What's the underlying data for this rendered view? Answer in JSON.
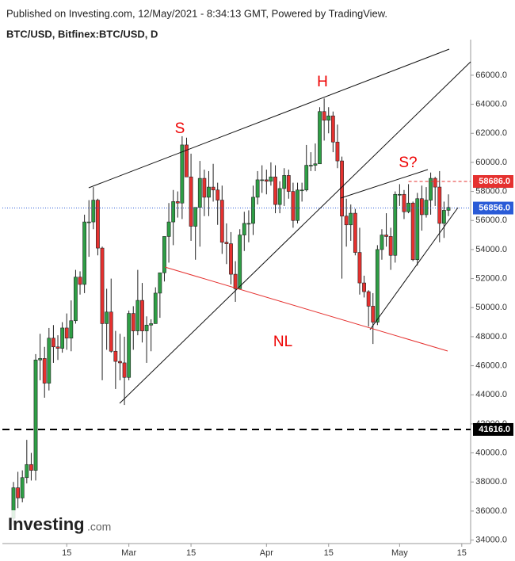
{
  "header": {
    "published": "Published on Investing.com, 12/May/2021 - 8:34:13 GMT, Powered by TradingView.",
    "symbol": "BTC/USD, Bitfinex:BTC/USD, D"
  },
  "logo": {
    "brand": "Investing",
    "suffix": ".com"
  },
  "chart_data": {
    "type": "candlestick",
    "annotations": [
      {
        "text": "S"
      },
      {
        "text": "H"
      },
      {
        "text": "S?"
      },
      {
        "text": "NL"
      }
    ],
    "up_color": "#2e9e45",
    "down_color": "#e5312f",
    "x": [
      2,
      3,
      4,
      5,
      6,
      7,
      8,
      9,
      10,
      11,
      12,
      13,
      14,
      15,
      16,
      17,
      18,
      19,
      20,
      21,
      22,
      23,
      24,
      25,
      26,
      27,
      28,
      29,
      30,
      31,
      32,
      33,
      34,
      35,
      36,
      37,
      38,
      39,
      40,
      41,
      42,
      43,
      44,
      45,
      46,
      47,
      48,
      49,
      50,
      51,
      52,
      53,
      54,
      55,
      56,
      57,
      58,
      59,
      60,
      61,
      62,
      63,
      64,
      65,
      66,
      67,
      68,
      69,
      70,
      71,
      72,
      73,
      74,
      75,
      76,
      77,
      78,
      79,
      80,
      81,
      82,
      83,
      84,
      85,
      86,
      87,
      88,
      89,
      90,
      91,
      92,
      93,
      94,
      95,
      96,
      97,
      98,
      99,
      100
    ],
    "open": [
      35500,
      37600,
      36900,
      38300,
      39200,
      38800,
      46400,
      46500,
      44800,
      47900,
      47300,
      47200,
      48600,
      47900,
      49100,
      52100,
      51600,
      55900,
      55900,
      57400,
      54100,
      48900,
      49700,
      47000,
      46300,
      46200,
      45200,
      49600,
      48400,
      50500,
      48400,
      48800,
      48900,
      51000,
      52400,
      54900,
      55900,
      57300,
      57200,
      61200,
      59000,
      55600,
      56900,
      58900,
      57600,
      58300,
      58100,
      57400,
      54500,
      54400,
      52300,
      51300,
      55000,
      55800,
      55800,
      57600,
      58800,
      58800,
      58700,
      59000,
      57100,
      58200,
      59100,
      58000,
      56000,
      58100,
      58100,
      59800,
      59800,
      59900,
      63500,
      62900,
      63200,
      61400,
      60100,
      56300,
      55700,
      56500,
      53800,
      51700,
      51100,
      50100,
      49000,
      54000,
      55000,
      54900,
      53600,
      57800,
      57800,
      56600,
      57200,
      53300,
      57500,
      56400,
      57400,
      58900,
      58300,
      55800,
      56700
    ],
    "high": [
      38000,
      38700,
      38800,
      40900,
      40000,
      46800,
      48200,
      47300,
      48600,
      48800,
      48100,
      49000,
      49600,
      50500,
      52600,
      52500,
      56400,
      57400,
      58300,
      57500,
      54200,
      51300,
      52000,
      48400,
      48200,
      48000,
      49800,
      50100,
      52600,
      51700,
      49400,
      49200,
      51400,
      52400,
      54900,
      57200,
      58100,
      58000,
      61800,
      61700,
      60600,
      56900,
      60100,
      59500,
      59400,
      59900,
      58600,
      58400,
      55800,
      55200,
      53200,
      55400,
      56600,
      56700,
      58400,
      59400,
      59800,
      59500,
      60000,
      59800,
      58700,
      59600,
      59500,
      58600,
      58600,
      58600,
      61200,
      60700,
      61300,
      63800,
      64400,
      63800,
      63500,
      62600,
      60400,
      57500,
      57100,
      56800,
      55500,
      52200,
      51200,
      51000,
      54300,
      55400,
      56500,
      55500,
      58000,
      58500,
      58100,
      58500,
      57300,
      57900,
      58400,
      58300,
      59300,
      59000,
      59400,
      57300,
      57800
    ],
    "low": [
      35000,
      36200,
      36600,
      37900,
      38100,
      38100,
      45000,
      43800,
      44300,
      46200,
      46400,
      46900,
      47100,
      47000,
      48900,
      50900,
      51000,
      53500,
      55400,
      53600,
      45000,
      47100,
      46900,
      44400,
      45000,
      43300,
      45000,
      47100,
      48100,
      47600,
      46200,
      47000,
      48900,
      49300,
      51800,
      53100,
      54300,
      56200,
      56100,
      59000,
      54600,
      53300,
      54200,
      56300,
      56300,
      57300,
      55700,
      53700,
      53000,
      51600,
      50400,
      51300,
      53900,
      54500,
      55000,
      57100,
      57900,
      57800,
      58400,
      56500,
      56500,
      57000,
      57500,
      55500,
      55800,
      57300,
      58000,
      59400,
      59400,
      59900,
      61500,
      62000,
      60700,
      59600,
      52000,
      54200,
      54600,
      53600,
      50900,
      50700,
      48700,
      47500,
      48800,
      53300,
      54200,
      52600,
      53100,
      57000,
      56100,
      56500,
      53200,
      52900,
      55300,
      56200,
      56400,
      57000,
      54500,
      54800,
      56300
    ],
    "close": [
      37600,
      36900,
      38300,
      39200,
      38800,
      46400,
      46500,
      44800,
      47900,
      47300,
      47200,
      48600,
      47900,
      49100,
      52100,
      51600,
      55900,
      55900,
      57400,
      54100,
      48900,
      49700,
      47000,
      46300,
      46200,
      45200,
      49600,
      48400,
      50500,
      48400,
      48800,
      48900,
      51000,
      52400,
      54900,
      55900,
      57300,
      57200,
      61200,
      59000,
      55600,
      56900,
      58900,
      57600,
      58300,
      58100,
      57400,
      54500,
      54400,
      52300,
      51300,
      55000,
      55800,
      55800,
      57600,
      58800,
      58800,
      58700,
      59000,
      57100,
      58200,
      59100,
      58000,
      56000,
      58100,
      58100,
      59800,
      59800,
      59900,
      63500,
      62900,
      63200,
      61400,
      60100,
      56300,
      55700,
      56500,
      53800,
      51700,
      51100,
      50100,
      49000,
      54000,
      55000,
      54900,
      53600,
      57800,
      57800,
      56600,
      57200,
      53300,
      57500,
      56400,
      57400,
      58900,
      58300,
      55800,
      56700,
      56900
    ],
    "xlim": [
      -0.5,
      105
    ],
    "xticks": [
      {
        "value": 14,
        "label": "15"
      },
      {
        "value": 28,
        "label": "Mar"
      },
      {
        "value": 42,
        "label": "15"
      },
      {
        "value": 59,
        "label": "Apr"
      },
      {
        "value": 73,
        "label": "15"
      },
      {
        "value": 89,
        "label": "May"
      },
      {
        "value": 103,
        "label": "15"
      }
    ],
    "ylim": [
      33760,
      68450
    ],
    "yticks": [
      {
        "value": 34000,
        "label": "34000.0"
      },
      {
        "value": 36000,
        "label": "36000.0"
      },
      {
        "value": 38000,
        "label": "38000.0"
      },
      {
        "value": 40000,
        "label": "40000.0"
      },
      {
        "value": 42000,
        "label": "42000.0"
      },
      {
        "value": 44000,
        "label": "44000.0"
      },
      {
        "value": 46000,
        "label": "46000.0"
      },
      {
        "value": 48000,
        "label": "48000.0"
      },
      {
        "value": 50000,
        "label": "50000.0"
      },
      {
        "value": 52000,
        "label": "52000.0"
      },
      {
        "value": 54000,
        "label": "54000.0"
      },
      {
        "value": 56000,
        "label": "56000.0"
      },
      {
        "value": 58000,
        "label": "58000.0"
      },
      {
        "value": 60000,
        "label": "60000.0"
      },
      {
        "value": 62000,
        "label": "62000.0"
      },
      {
        "value": 64000,
        "label": "64000.0"
      },
      {
        "value": 66000,
        "label": "66000.0"
      }
    ],
    "levels": [
      {
        "value": 58686,
        "label": "58686.0",
        "color": "#e5312f",
        "style": "dashed",
        "from_x": 91
      },
      {
        "value": 56856,
        "label": "56856.0",
        "color": "#2a5bd7",
        "style": "dotted",
        "from_x": -0.5
      },
      {
        "value": 41616,
        "label": "41616.0",
        "color": "#000000",
        "style": "dashed-thick",
        "from_x": -0.5
      }
    ]
  }
}
